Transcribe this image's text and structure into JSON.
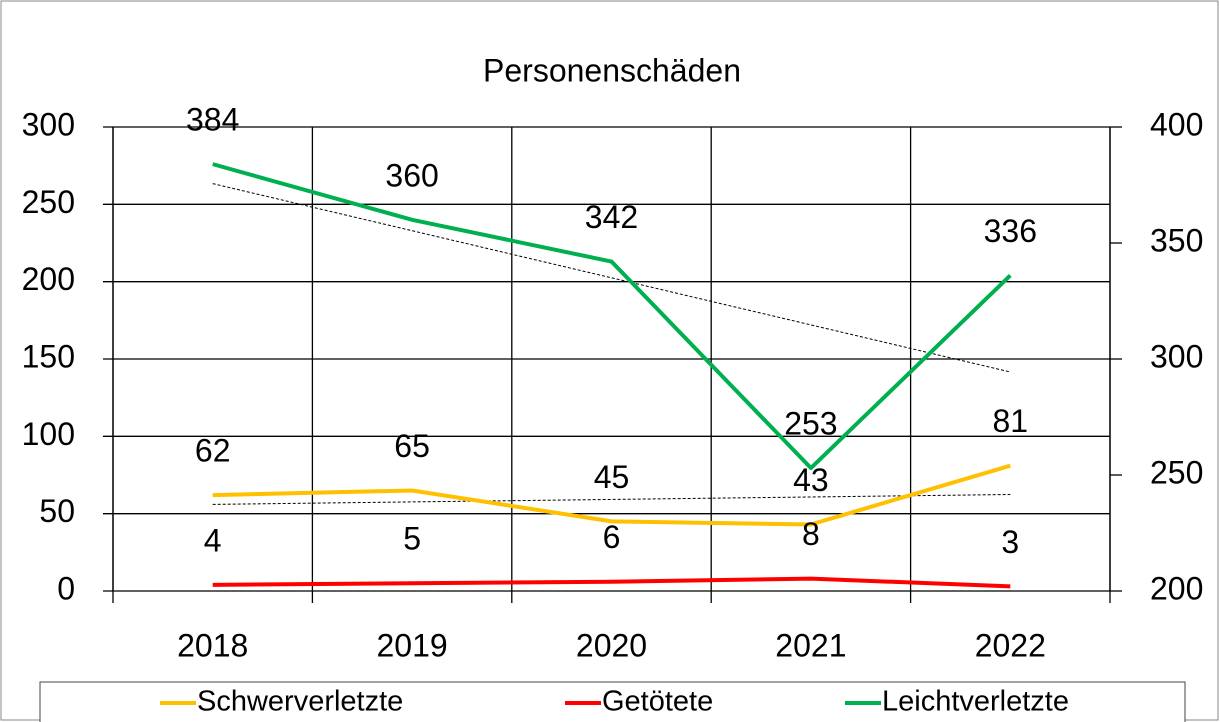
{
  "chart_data": {
    "type": "line",
    "title": "Personenschäden",
    "categories": [
      "2018",
      "2019",
      "2020",
      "2021",
      "2022"
    ],
    "series": [
      {
        "name": "Schwerverletzte",
        "color": "#ffc000",
        "values": [
          62,
          65,
          45,
          43,
          81
        ],
        "trendline": true
      },
      {
        "name": "Getötete",
        "color": "#ff0000",
        "values": [
          4,
          5,
          6,
          8,
          3
        ]
      },
      {
        "name": "Leichtverletzte",
        "color": "#00b050",
        "values": [
          384,
          360,
          342,
          253,
          336
        ],
        "axis": "y2",
        "trendline": true
      }
    ],
    "ylim": [
      0,
      300
    ],
    "yticks": [
      0,
      50,
      100,
      150,
      200,
      250,
      300
    ],
    "y2lim": [
      200,
      400
    ],
    "y2ticks": [
      200,
      250,
      300,
      350,
      400
    ],
    "grid": true,
    "legend": "bottom",
    "data_labels": true
  }
}
